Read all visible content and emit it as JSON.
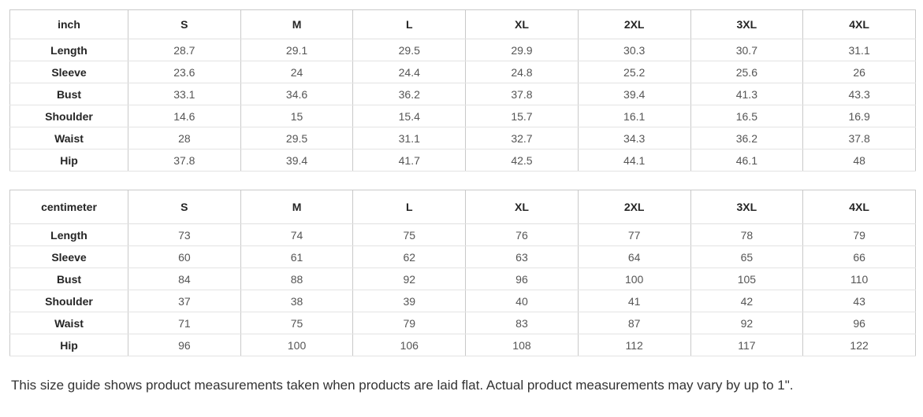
{
  "tables": [
    {
      "unit": "inch",
      "sizes": [
        "S",
        "M",
        "L",
        "XL",
        "2XL",
        "3XL",
        "4XL"
      ],
      "rows": [
        {
          "label": "Length",
          "values": [
            "28.7",
            "29.1",
            "29.5",
            "29.9",
            "30.3",
            "30.7",
            "31.1"
          ]
        },
        {
          "label": "Sleeve",
          "values": [
            "23.6",
            "24",
            "24.4",
            "24.8",
            "25.2",
            "25.6",
            "26"
          ]
        },
        {
          "label": "Bust",
          "values": [
            "33.1",
            "34.6",
            "36.2",
            "37.8",
            "39.4",
            "41.3",
            "43.3"
          ]
        },
        {
          "label": "Shoulder",
          "values": [
            "14.6",
            "15",
            "15.4",
            "15.7",
            "16.1",
            "16.5",
            "16.9"
          ]
        },
        {
          "label": "Waist",
          "values": [
            "28",
            "29.5",
            "31.1",
            "32.7",
            "34.3",
            "36.2",
            "37.8"
          ]
        },
        {
          "label": "Hip",
          "values": [
            "37.8",
            "39.4",
            "41.7",
            "42.5",
            "44.1",
            "46.1",
            "48"
          ]
        }
      ]
    },
    {
      "unit": "centimeter",
      "sizes": [
        "S",
        "M",
        "L",
        "XL",
        "2XL",
        "3XL",
        "4XL"
      ],
      "rows": [
        {
          "label": "Length",
          "values": [
            "73",
            "74",
            "75",
            "76",
            "77",
            "78",
            "79"
          ]
        },
        {
          "label": "Sleeve",
          "values": [
            "60",
            "61",
            "62",
            "63",
            "64",
            "65",
            "66"
          ]
        },
        {
          "label": "Bust",
          "values": [
            "84",
            "88",
            "92",
            "96",
            "100",
            "105",
            "110"
          ]
        },
        {
          "label": "Shoulder",
          "values": [
            "37",
            "38",
            "39",
            "40",
            "41",
            "42",
            "43"
          ]
        },
        {
          "label": "Waist",
          "values": [
            "71",
            "75",
            "79",
            "83",
            "87",
            "92",
            "96"
          ]
        },
        {
          "label": "Hip",
          "values": [
            "96",
            "100",
            "106",
            "108",
            "112",
            "117",
            "122"
          ]
        }
      ]
    }
  ],
  "footer": {
    "note": "This size guide shows product measurements taken when products are laid flat. Actual product measurements may vary by up to 1\"."
  },
  "colors": {
    "background": "#ffffff",
    "border_vertical": "#c9c9c9",
    "border_horizontal": "#e3e3e3",
    "heading_text": "#252525",
    "cell_text": "#555555",
    "note_text": "#333333"
  }
}
